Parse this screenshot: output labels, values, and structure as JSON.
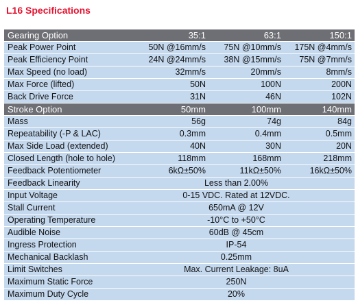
{
  "title": "L16 Specifications",
  "gearing": {
    "label": "Gearing Option",
    "options": [
      "35:1",
      "63:1",
      "150:1"
    ],
    "rows": [
      {
        "label": "Peak Power Point",
        "values": [
          "50N @16mm/s",
          "75N @10mm/s",
          "175N @4mm/s"
        ]
      },
      {
        "label": "Peak Efficiency Point",
        "values": [
          "24N @24mm/s",
          "38N @15mm/s",
          "75N @7mm/s"
        ]
      },
      {
        "label": "Max Speed (no load)",
        "values": [
          "32mm/s",
          "20mm/s",
          "8mm/s"
        ]
      },
      {
        "label": "Max Force (lifted)",
        "values": [
          "50N",
          "100N",
          "200N"
        ]
      },
      {
        "label": "Back Drive Force",
        "values": [
          "31N",
          "46N",
          "102N"
        ]
      }
    ]
  },
  "stroke": {
    "label": "Stroke Option",
    "options": [
      "50mm",
      "100mm",
      "140mm"
    ],
    "rows": [
      {
        "label": "Mass",
        "values": [
          "56g",
          "74g",
          "84g"
        ]
      },
      {
        "label": "Repeatability (-P & LAC)",
        "values": [
          "0.3mm",
          "0.4mm",
          "0.5mm"
        ]
      },
      {
        "label": "Max Side Load (extended)",
        "values": [
          "40N",
          "30N",
          "20N"
        ]
      },
      {
        "label": "Closed Length (hole to hole)",
        "values": [
          "118mm",
          "168mm",
          "218mm"
        ]
      },
      {
        "label": "Feedback Potentiometer",
        "values": [
          "6kΩ±50%",
          "11kΩ±50%",
          "16kΩ±50%"
        ]
      }
    ]
  },
  "general": [
    {
      "label": "Feedback Linearity",
      "value": "Less than 2.00%"
    },
    {
      "label": "Input Voltage",
      "value": "0-15 VDC.  Rated at 12VDC."
    },
    {
      "label": "Stall Current",
      "value": "650mA @ 12V"
    },
    {
      "label": "Operating Temperature",
      "value": "-10°C to +50°C"
    },
    {
      "label": "Audible Noise",
      "value": "60dB @ 45cm"
    },
    {
      "label": "Ingress Protection",
      "value": "IP-54"
    },
    {
      "label": "Mechanical Backlash",
      "value": "0.25mm"
    },
    {
      "label": "Limit Switches",
      "value": "Max. Current Leakage: 8uA"
    },
    {
      "label": "Maximum Static Force",
      "value": "250N"
    },
    {
      "label": "Maximum Duty Cycle",
      "value": "20%"
    }
  ],
  "colors": {
    "title": "#e3122f",
    "header_bg": "#6e6f74",
    "row_bg": "#c4d8ee"
  }
}
